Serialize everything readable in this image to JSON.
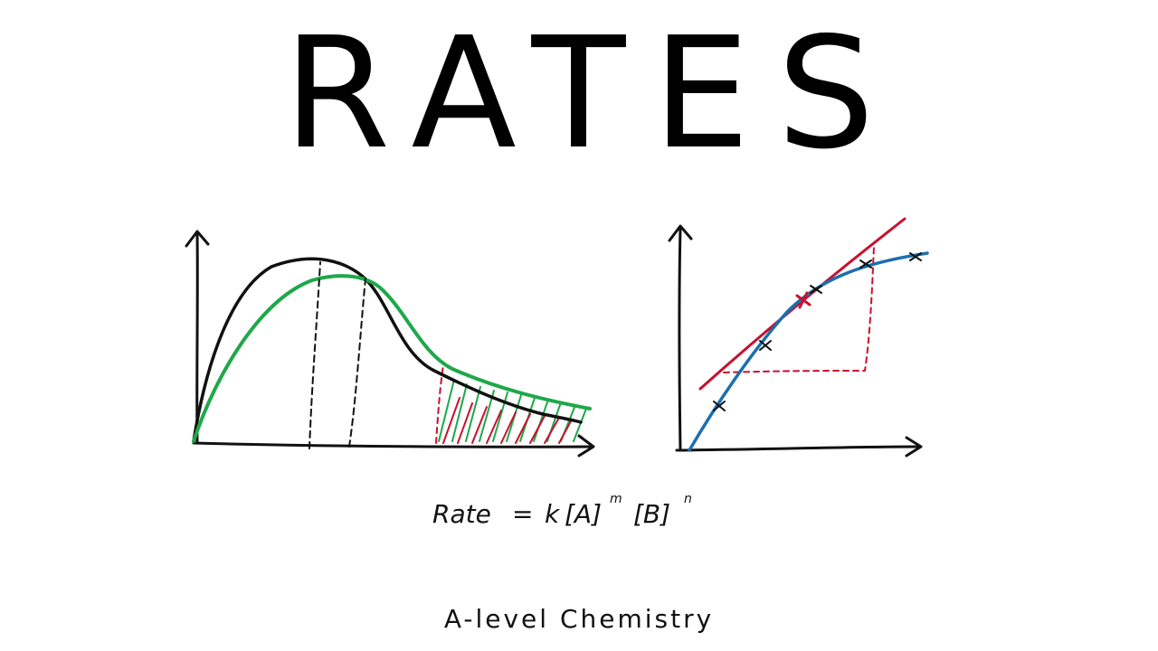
{
  "title": "RATES",
  "subtitle": "A-level Chemistry",
  "equation": {
    "lhs": "Rate",
    "equals": "=",
    "k": "k",
    "a_term": "[A]",
    "m": "m",
    "b_term": "[B]",
    "n": "n"
  },
  "colors": {
    "black": "#111111",
    "green": "#1ea84a",
    "red": "#c8102e",
    "blue": "#1a6fb0"
  }
}
